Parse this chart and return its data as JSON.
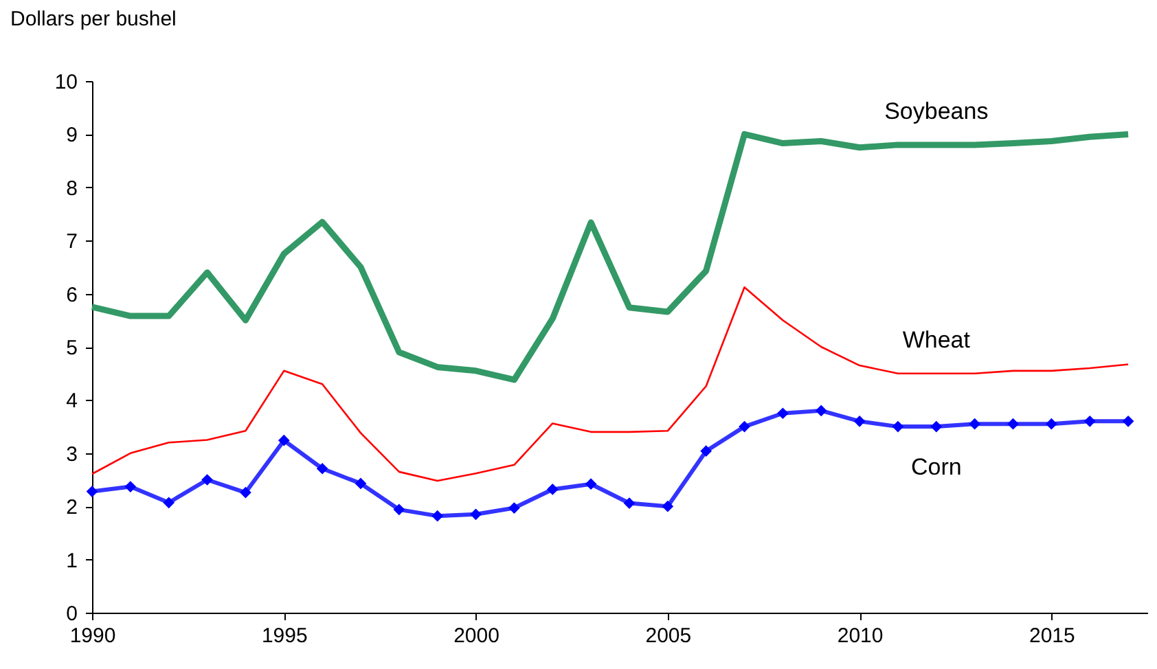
{
  "chart_data": {
    "type": "line",
    "ylabel": "Dollars per bushel",
    "x": [
      1990,
      1991,
      1992,
      1993,
      1994,
      1995,
      1996,
      1997,
      1998,
      1999,
      2000,
      2001,
      2002,
      2003,
      2004,
      2005,
      2006,
      2007,
      2008,
      2009,
      2010,
      2011,
      2012,
      2013,
      2014,
      2015,
      2016,
      2017
    ],
    "xlim": [
      1990,
      2017.5
    ],
    "xticks": [
      1990,
      1995,
      2000,
      2005,
      2010,
      2015
    ],
    "ylim": [
      0,
      10
    ],
    "yticks": [
      0,
      1,
      2,
      3,
      4,
      5,
      6,
      7,
      8,
      9,
      10
    ],
    "grid": false,
    "legend": false,
    "series": [
      {
        "name": "Soybeans",
        "color": "#339966",
        "marker": "none",
        "values": [
          5.75,
          5.58,
          5.58,
          6.4,
          5.5,
          6.75,
          7.35,
          6.5,
          4.9,
          4.62,
          4.55,
          4.38,
          5.53,
          7.34,
          5.74,
          5.66,
          6.43,
          9.0,
          8.83,
          8.87,
          8.75,
          8.8,
          8.8,
          8.8,
          8.83,
          8.87,
          8.95,
          9.0
        ]
      },
      {
        "name": "Wheat",
        "color": "#ff0000",
        "marker": "none",
        "values": [
          2.61,
          3.0,
          3.2,
          3.25,
          3.42,
          4.55,
          4.3,
          3.38,
          2.65,
          2.48,
          2.62,
          2.78,
          3.56,
          3.4,
          3.4,
          3.42,
          4.26,
          6.12,
          5.5,
          5.0,
          4.65,
          4.5,
          4.5,
          4.5,
          4.55,
          4.55,
          4.6,
          4.67
        ]
      },
      {
        "name": "Corn",
        "color": "#0000ff",
        "marker": "diamond",
        "values": [
          2.28,
          2.37,
          2.07,
          2.5,
          2.26,
          3.24,
          2.71,
          2.43,
          1.94,
          1.82,
          1.85,
          1.97,
          2.32,
          2.42,
          2.06,
          2.0,
          3.04,
          3.5,
          3.75,
          3.8,
          3.6,
          3.5,
          3.5,
          3.55,
          3.55,
          3.55,
          3.6,
          3.6
        ]
      }
    ]
  }
}
